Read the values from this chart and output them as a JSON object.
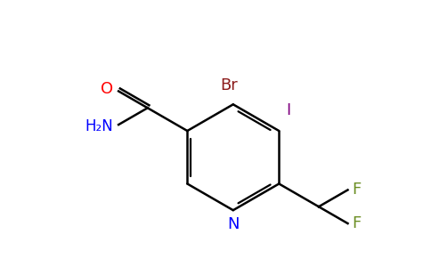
{
  "background_color": "#ffffff",
  "bond_color": "#000000",
  "atom_colors": {
    "Br": "#8b1a1a",
    "I": "#800080",
    "F": "#6b8e23",
    "O": "#ff0000",
    "N": "#0000ff",
    "H2N": "#0000ff",
    "C": "#000000"
  },
  "figsize": [
    4.84,
    3.0
  ],
  "dpi": 100
}
